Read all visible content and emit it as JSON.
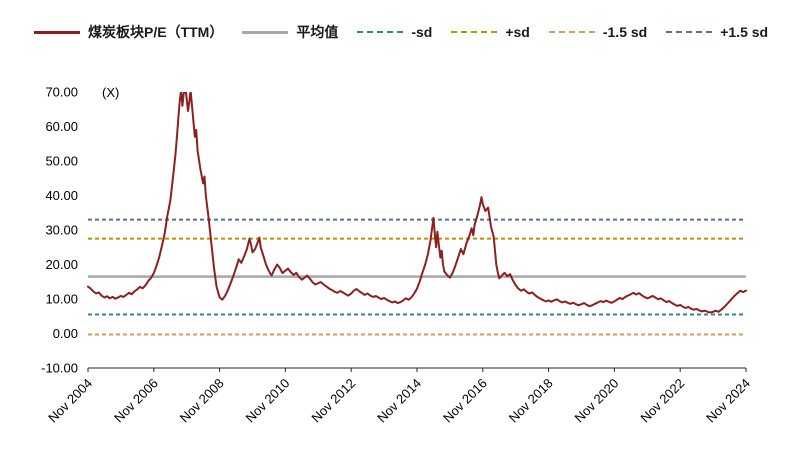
{
  "page": {
    "background": "#FFFFFF"
  },
  "legend": {
    "items": [
      {
        "label": "煤炭板块P/E（TTM）",
        "color": "#8E1F1F",
        "style": "solid",
        "weight": 3.5
      },
      {
        "label": "平均值",
        "color": "#A8A8A8",
        "style": "solid",
        "weight": 3
      },
      {
        "label": "-sd",
        "color": "#31849B",
        "style": "dashed",
        "weight": 2.5
      },
      {
        "label": "+sd",
        "color": "#BF9000",
        "style": "dashed",
        "weight": 2.5
      },
      {
        "label": "-1.5 sd",
        "color": "#D99A5B",
        "style": "dashed",
        "weight": 2.5
      },
      {
        "label": "+1.5 sd",
        "color": "#5B718F",
        "style": "dashed",
        "weight": 2.5
      }
    ]
  },
  "chart_data": {
    "type": "line",
    "title": "",
    "unit_label": "(X)",
    "xlabel": "",
    "ylabel": "",
    "ylim": [
      -10,
      70
    ],
    "xlim": [
      2004.92,
      2024.92
    ],
    "grid": false,
    "legend_position": "top",
    "axis_color": "#262626",
    "y_ticks": [
      70,
      60,
      50,
      40,
      30,
      20,
      10,
      0,
      -10
    ],
    "x_ticks": [
      "Nov 2004",
      "Nov 2006",
      "Nov 2008",
      "Nov 2010",
      "Nov 2012",
      "Nov 2014",
      "Nov 2016",
      "Nov 2018",
      "Nov 2020",
      "Nov 2022",
      "Nov 2024"
    ],
    "x_tick_values": [
      2004.92,
      2006.92,
      2008.92,
      2010.92,
      2012.92,
      2014.92,
      2016.92,
      2018.92,
      2020.92,
      2022.92,
      2024.92
    ],
    "reference_lines": [
      {
        "name": "平均值",
        "value": 16.5,
        "color": "#A8A8A8",
        "style": "solid",
        "width": 2.5
      },
      {
        "name": "-sd",
        "value": 5.5,
        "color": "#31849B",
        "style": "dashed",
        "width": 2
      },
      {
        "name": "+sd",
        "value": 27.5,
        "color": "#BF9000",
        "style": "dashed",
        "width": 2
      },
      {
        "name": "-1.5 sd",
        "value": -0.3,
        "color": "#D99A5B",
        "style": "dashed",
        "width": 2
      },
      {
        "name": "+1.5 sd",
        "value": 33,
        "color": "#5B718F",
        "style": "dashed",
        "width": 2
      }
    ],
    "series": [
      {
        "name": "煤炭板块P/E（TTM）",
        "color": "#8E1F1F",
        "style": "solid",
        "width": 2,
        "points": [
          [
            2004.92,
            13.6
          ],
          [
            2005.0,
            13.0
          ],
          [
            2005.08,
            12.2
          ],
          [
            2005.17,
            11.6
          ],
          [
            2005.25,
            11.9
          ],
          [
            2005.33,
            11.0
          ],
          [
            2005.42,
            10.4
          ],
          [
            2005.5,
            10.8
          ],
          [
            2005.58,
            10.2
          ],
          [
            2005.67,
            10.6
          ],
          [
            2005.75,
            10.1
          ],
          [
            2005.83,
            10.4
          ],
          [
            2005.92,
            10.9
          ],
          [
            2006.0,
            10.6
          ],
          [
            2006.08,
            11.2
          ],
          [
            2006.17,
            11.8
          ],
          [
            2006.25,
            11.4
          ],
          [
            2006.33,
            12.2
          ],
          [
            2006.42,
            12.8
          ],
          [
            2006.5,
            13.5
          ],
          [
            2006.58,
            13.1
          ],
          [
            2006.67,
            14.0
          ],
          [
            2006.75,
            15.2
          ],
          [
            2006.83,
            16.0
          ],
          [
            2006.92,
            17.5
          ],
          [
            2007.0,
            19.5
          ],
          [
            2007.08,
            22.0
          ],
          [
            2007.17,
            25.5
          ],
          [
            2007.25,
            29.0
          ],
          [
            2007.33,
            34.0
          ],
          [
            2007.42,
            38.5
          ],
          [
            2007.5,
            45.0
          ],
          [
            2007.58,
            52.0
          ],
          [
            2007.63,
            58.0
          ],
          [
            2007.67,
            63.0
          ],
          [
            2007.71,
            67.5
          ],
          [
            2007.75,
            70.5
          ],
          [
            2007.79,
            66.0
          ],
          [
            2007.83,
            69.5
          ],
          [
            2007.88,
            71.5
          ],
          [
            2007.92,
            68.0
          ],
          [
            2007.96,
            64.5
          ],
          [
            2008.0,
            67.0
          ],
          [
            2008.04,
            70.5
          ],
          [
            2008.08,
            66.0
          ],
          [
            2008.13,
            61.0
          ],
          [
            2008.17,
            57.0
          ],
          [
            2008.21,
            59.0
          ],
          [
            2008.25,
            53.0
          ],
          [
            2008.33,
            48.0
          ],
          [
            2008.42,
            43.5
          ],
          [
            2008.46,
            45.5
          ],
          [
            2008.5,
            40.0
          ],
          [
            2008.58,
            34.0
          ],
          [
            2008.67,
            26.0
          ],
          [
            2008.75,
            19.0
          ],
          [
            2008.83,
            13.5
          ],
          [
            2008.92,
            10.5
          ],
          [
            2009.0,
            9.8
          ],
          [
            2009.08,
            10.8
          ],
          [
            2009.17,
            12.5
          ],
          [
            2009.25,
            14.5
          ],
          [
            2009.33,
            16.5
          ],
          [
            2009.42,
            19.0
          ],
          [
            2009.5,
            21.5
          ],
          [
            2009.58,
            20.5
          ],
          [
            2009.67,
            22.5
          ],
          [
            2009.75,
            24.5
          ],
          [
            2009.83,
            27.5
          ],
          [
            2009.88,
            25.5
          ],
          [
            2009.92,
            23.5
          ],
          [
            2010.0,
            24.5
          ],
          [
            2010.08,
            26.5
          ],
          [
            2010.13,
            27.8
          ],
          [
            2010.17,
            25.0
          ],
          [
            2010.25,
            22.5
          ],
          [
            2010.33,
            20.0
          ],
          [
            2010.42,
            18.0
          ],
          [
            2010.5,
            16.8
          ],
          [
            2010.58,
            18.5
          ],
          [
            2010.67,
            20.0
          ],
          [
            2010.75,
            19.0
          ],
          [
            2010.83,
            17.5
          ],
          [
            2010.92,
            18.2
          ],
          [
            2011.0,
            18.8
          ],
          [
            2011.08,
            17.8
          ],
          [
            2011.17,
            17.0
          ],
          [
            2011.25,
            17.6
          ],
          [
            2011.33,
            16.4
          ],
          [
            2011.42,
            15.6
          ],
          [
            2011.5,
            16.2
          ],
          [
            2011.58,
            16.8
          ],
          [
            2011.67,
            15.8
          ],
          [
            2011.75,
            14.8
          ],
          [
            2011.83,
            14.2
          ],
          [
            2011.92,
            14.6
          ],
          [
            2012.0,
            14.9
          ],
          [
            2012.08,
            14.2
          ],
          [
            2012.17,
            13.6
          ],
          [
            2012.25,
            13.0
          ],
          [
            2012.33,
            12.6
          ],
          [
            2012.42,
            12.1
          ],
          [
            2012.5,
            11.8
          ],
          [
            2012.58,
            12.3
          ],
          [
            2012.67,
            11.9
          ],
          [
            2012.75,
            11.4
          ],
          [
            2012.83,
            11.0
          ],
          [
            2012.92,
            11.6
          ],
          [
            2013.0,
            12.4
          ],
          [
            2013.08,
            12.9
          ],
          [
            2013.17,
            12.2
          ],
          [
            2013.25,
            11.7
          ],
          [
            2013.33,
            11.2
          ],
          [
            2013.42,
            11.6
          ],
          [
            2013.5,
            11.0
          ],
          [
            2013.58,
            10.6
          ],
          [
            2013.67,
            10.9
          ],
          [
            2013.75,
            10.4
          ],
          [
            2013.83,
            10.0
          ],
          [
            2013.92,
            10.3
          ],
          [
            2014.0,
            9.8
          ],
          [
            2014.08,
            9.4
          ],
          [
            2014.17,
            9.0
          ],
          [
            2014.25,
            9.3
          ],
          [
            2014.33,
            8.8
          ],
          [
            2014.42,
            9.1
          ],
          [
            2014.5,
            9.6
          ],
          [
            2014.58,
            10.2
          ],
          [
            2014.67,
            9.8
          ],
          [
            2014.75,
            10.5
          ],
          [
            2014.83,
            11.5
          ],
          [
            2014.92,
            13.0
          ],
          [
            2015.0,
            15.0
          ],
          [
            2015.08,
            17.5
          ],
          [
            2015.17,
            20.0
          ],
          [
            2015.25,
            23.0
          ],
          [
            2015.33,
            27.0
          ],
          [
            2015.38,
            30.5
          ],
          [
            2015.42,
            33.5
          ],
          [
            2015.46,
            29.0
          ],
          [
            2015.5,
            25.0
          ],
          [
            2015.54,
            29.5
          ],
          [
            2015.58,
            26.0
          ],
          [
            2015.63,
            22.0
          ],
          [
            2015.67,
            24.0
          ],
          [
            2015.71,
            20.0
          ],
          [
            2015.75,
            18.0
          ],
          [
            2015.83,
            17.0
          ],
          [
            2015.92,
            16.2
          ],
          [
            2016.0,
            17.5
          ],
          [
            2016.08,
            19.5
          ],
          [
            2016.17,
            22.0
          ],
          [
            2016.25,
            24.5
          ],
          [
            2016.33,
            23.0
          ],
          [
            2016.42,
            26.0
          ],
          [
            2016.5,
            28.0
          ],
          [
            2016.58,
            30.5
          ],
          [
            2016.63,
            28.5
          ],
          [
            2016.67,
            31.5
          ],
          [
            2016.75,
            34.0
          ],
          [
            2016.83,
            37.0
          ],
          [
            2016.88,
            39.5
          ],
          [
            2016.92,
            37.5
          ],
          [
            2017.0,
            35.5
          ],
          [
            2017.08,
            36.5
          ],
          [
            2017.13,
            33.5
          ],
          [
            2017.17,
            31.0
          ],
          [
            2017.25,
            28.0
          ],
          [
            2017.29,
            24.0
          ],
          [
            2017.33,
            20.0
          ],
          [
            2017.38,
            17.5
          ],
          [
            2017.42,
            16.0
          ],
          [
            2017.5,
            16.8
          ],
          [
            2017.58,
            17.6
          ],
          [
            2017.67,
            16.6
          ],
          [
            2017.75,
            17.2
          ],
          [
            2017.83,
            15.5
          ],
          [
            2017.92,
            14.0
          ],
          [
            2018.0,
            13.0
          ],
          [
            2018.08,
            12.4
          ],
          [
            2018.17,
            12.8
          ],
          [
            2018.25,
            12.1
          ],
          [
            2018.33,
            11.6
          ],
          [
            2018.42,
            11.9
          ],
          [
            2018.5,
            11.2
          ],
          [
            2018.58,
            10.6
          ],
          [
            2018.67,
            10.1
          ],
          [
            2018.75,
            9.7
          ],
          [
            2018.83,
            9.3
          ],
          [
            2018.92,
            9.6
          ],
          [
            2019.0,
            9.2
          ],
          [
            2019.08,
            9.6
          ],
          [
            2019.17,
            9.9
          ],
          [
            2019.25,
            9.4
          ],
          [
            2019.33,
            9.0
          ],
          [
            2019.42,
            9.3
          ],
          [
            2019.5,
            8.9
          ],
          [
            2019.58,
            8.6
          ],
          [
            2019.67,
            8.9
          ],
          [
            2019.75,
            8.5
          ],
          [
            2019.83,
            8.2
          ],
          [
            2019.92,
            8.5
          ],
          [
            2020.0,
            8.8
          ],
          [
            2020.08,
            8.3
          ],
          [
            2020.17,
            7.9
          ],
          [
            2020.25,
            8.2
          ],
          [
            2020.33,
            8.6
          ],
          [
            2020.42,
            9.0
          ],
          [
            2020.5,
            9.4
          ],
          [
            2020.58,
            9.1
          ],
          [
            2020.67,
            9.5
          ],
          [
            2020.75,
            9.2
          ],
          [
            2020.83,
            8.9
          ],
          [
            2020.92,
            9.3
          ],
          [
            2021.0,
            9.8
          ],
          [
            2021.08,
            10.3
          ],
          [
            2021.17,
            10.0
          ],
          [
            2021.25,
            10.6
          ],
          [
            2021.33,
            11.0
          ],
          [
            2021.42,
            11.4
          ],
          [
            2021.5,
            11.8
          ],
          [
            2021.58,
            11.3
          ],
          [
            2021.67,
            11.7
          ],
          [
            2021.75,
            11.1
          ],
          [
            2021.83,
            10.6
          ],
          [
            2021.92,
            10.2
          ],
          [
            2022.0,
            10.5
          ],
          [
            2022.08,
            10.9
          ],
          [
            2022.17,
            10.4
          ],
          [
            2022.25,
            9.9
          ],
          [
            2022.33,
            10.2
          ],
          [
            2022.42,
            9.6
          ],
          [
            2022.5,
            9.1
          ],
          [
            2022.58,
            9.4
          ],
          [
            2022.67,
            8.8
          ],
          [
            2022.75,
            8.4
          ],
          [
            2022.83,
            8.0
          ],
          [
            2022.92,
            8.3
          ],
          [
            2023.0,
            7.8
          ],
          [
            2023.08,
            7.4
          ],
          [
            2023.17,
            7.7
          ],
          [
            2023.25,
            7.2
          ],
          [
            2023.33,
            6.9
          ],
          [
            2023.42,
            7.1
          ],
          [
            2023.5,
            6.7
          ],
          [
            2023.58,
            6.4
          ],
          [
            2023.67,
            6.6
          ],
          [
            2023.75,
            6.3
          ],
          [
            2023.83,
            6.1
          ],
          [
            2023.92,
            6.3
          ],
          [
            2024.0,
            6.6
          ],
          [
            2024.08,
            6.3
          ],
          [
            2024.17,
            6.9
          ],
          [
            2024.25,
            7.6
          ],
          [
            2024.33,
            8.4
          ],
          [
            2024.42,
            9.3
          ],
          [
            2024.5,
            10.2
          ],
          [
            2024.58,
            11.0
          ],
          [
            2024.67,
            11.8
          ],
          [
            2024.75,
            12.4
          ],
          [
            2024.83,
            12.0
          ],
          [
            2024.92,
            12.4
          ]
        ]
      }
    ]
  }
}
